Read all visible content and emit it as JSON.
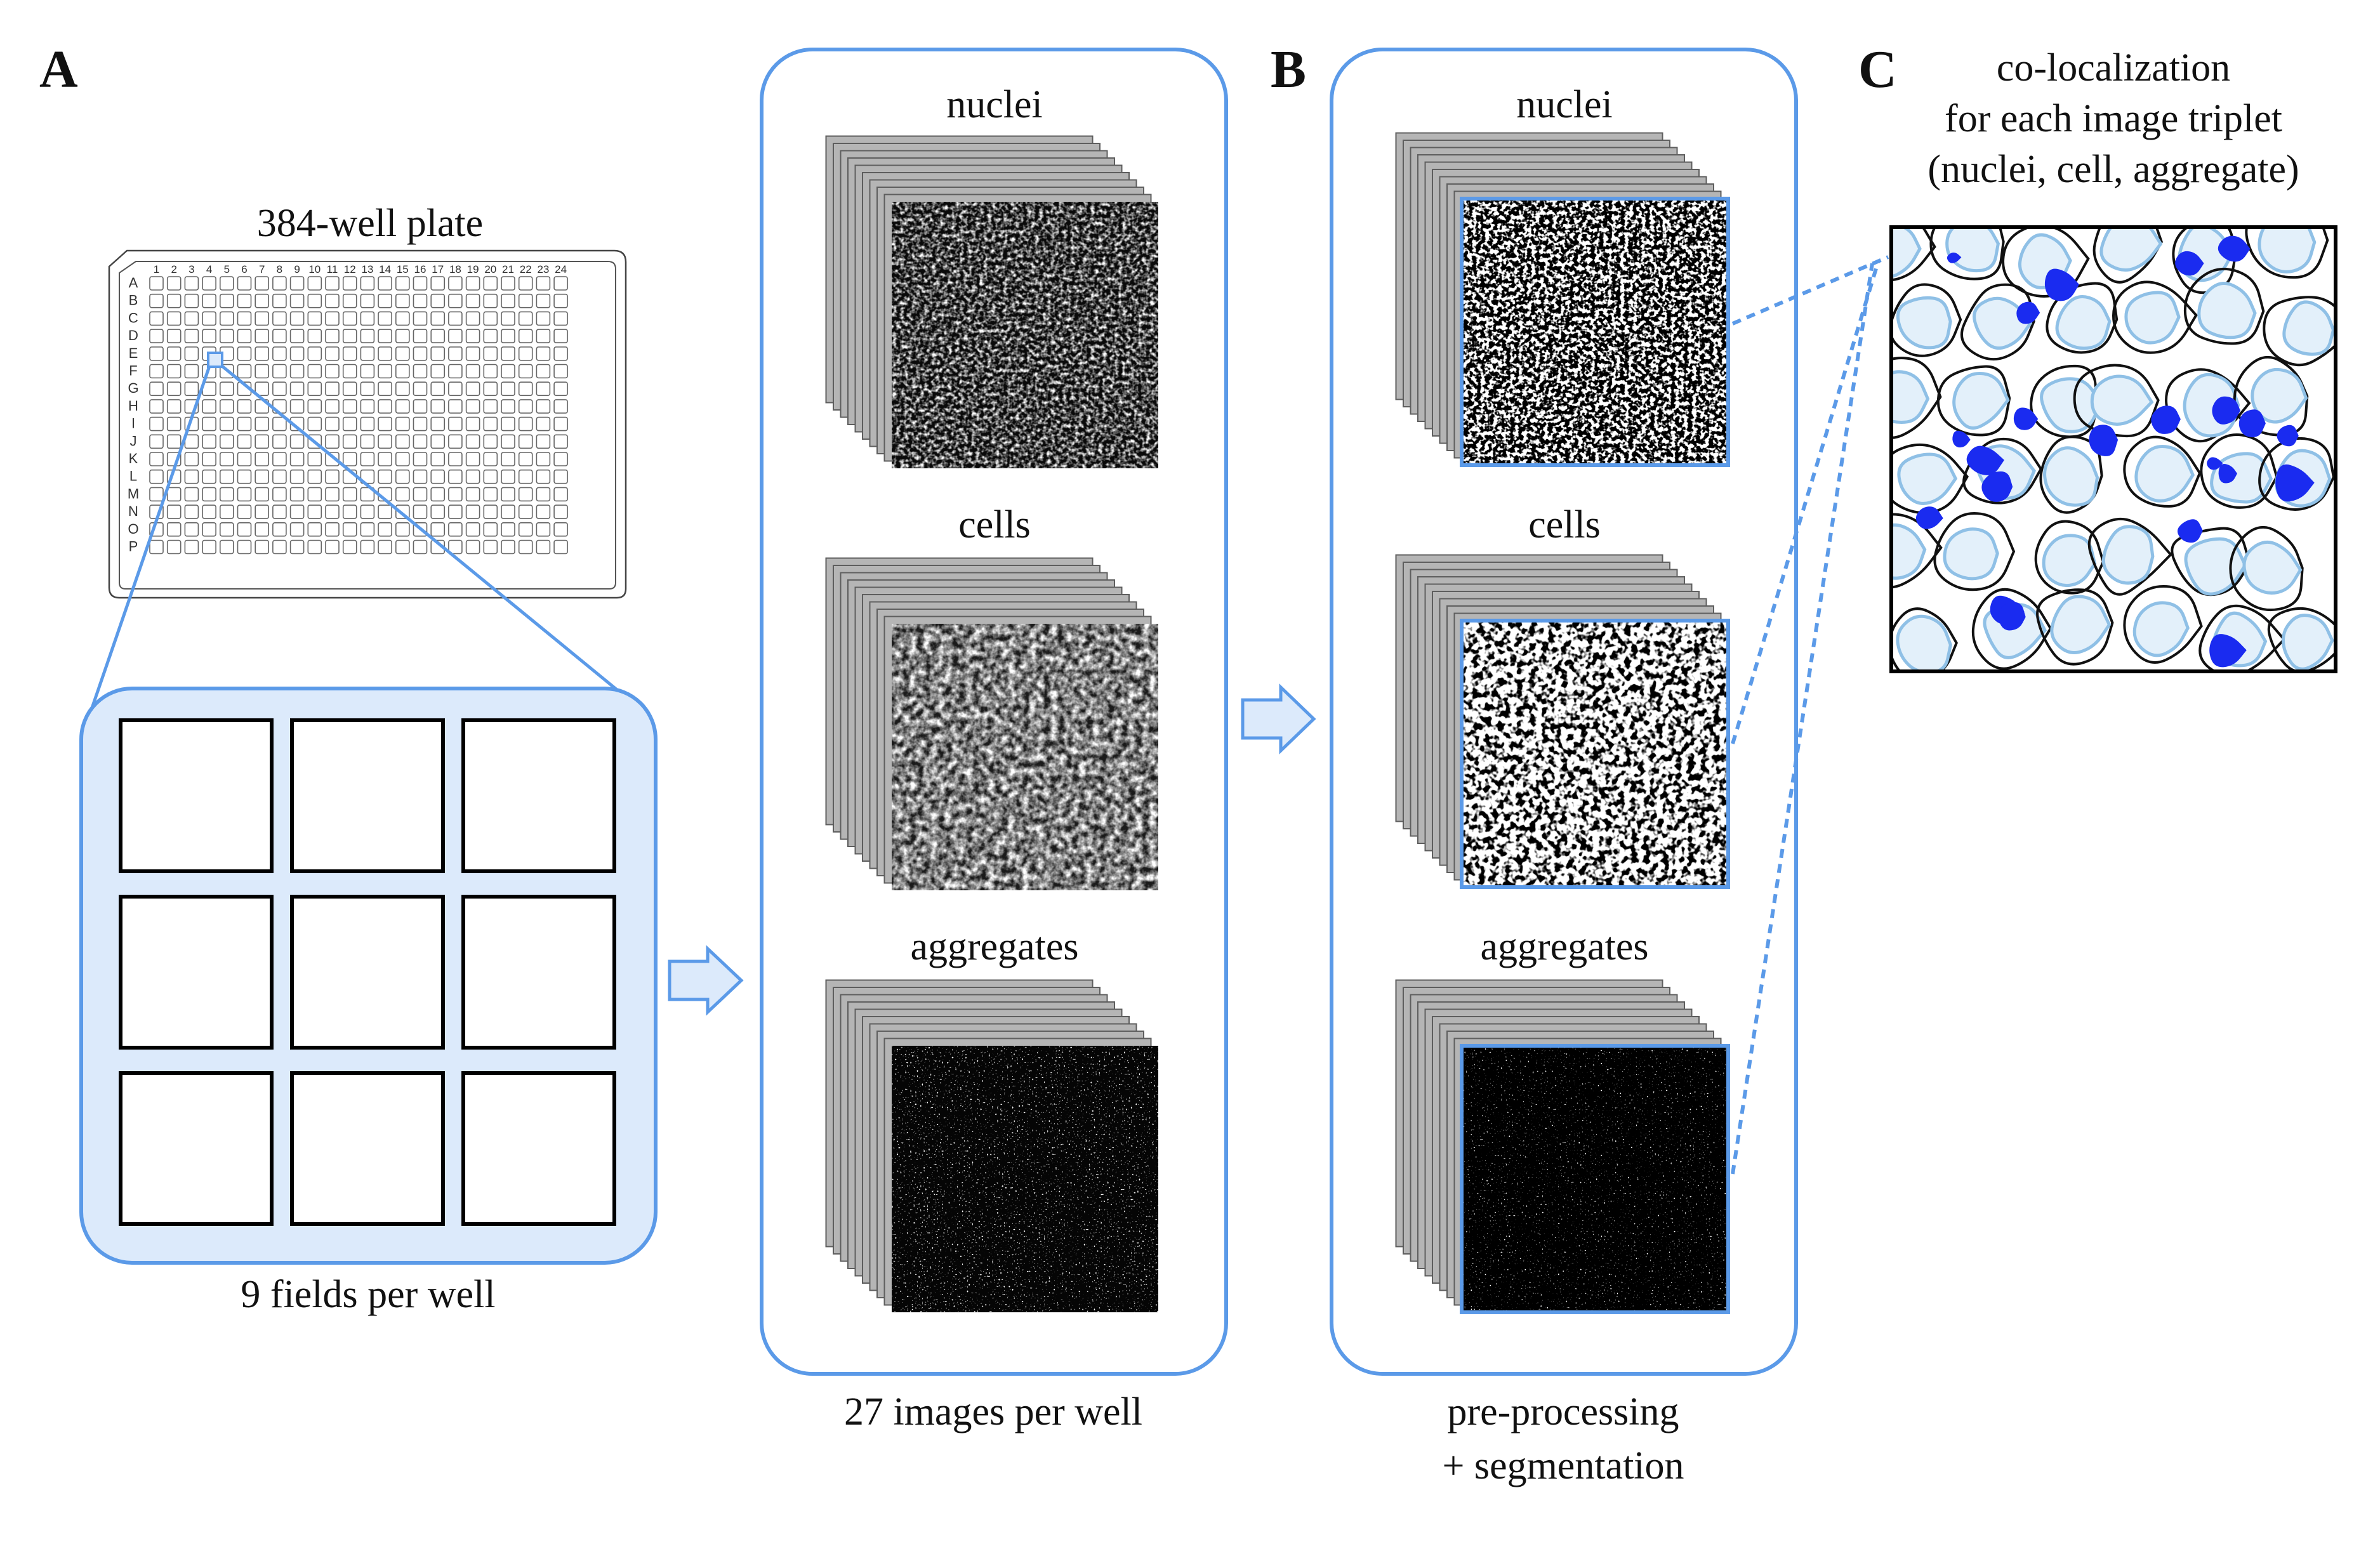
{
  "panel_a": {
    "label": "A",
    "plate_title": "384-well plate",
    "plate_columns": [
      "1",
      "2",
      "3",
      "4",
      "5",
      "6",
      "7",
      "8",
      "9",
      "10",
      "11",
      "12",
      "13",
      "14",
      "15",
      "16",
      "17",
      "18",
      "19",
      "20",
      "21",
      "22",
      "23",
      "24"
    ],
    "plate_rows": [
      "A",
      "B",
      "C",
      "D",
      "E",
      "F",
      "G",
      "H",
      "I",
      "J",
      "K",
      "L",
      "M",
      "N",
      "O",
      "P"
    ],
    "fields_caption": "9 fields per well",
    "images_caption": "27 images per well",
    "stack_labels": [
      "nuclei",
      "cells",
      "aggregates"
    ]
  },
  "panel_b": {
    "label": "B",
    "stack_labels": [
      "nuclei",
      "cells",
      "aggregates"
    ],
    "caption_line1": "pre-processing",
    "caption_line2": "+ segmentation"
  },
  "panel_c": {
    "label": "C",
    "title_line1": "co-localization",
    "title_line2": "for each image triplet",
    "title_line3": "(nuclei, cell, aggregate)"
  },
  "colors": {
    "accent_blue": "#5b9ae8",
    "light_fill": "#dceafb",
    "aggregate_blue": "#1a2bf0",
    "cell_outline": "#8fc0e6",
    "stack_gray": "#b5b5b5"
  }
}
